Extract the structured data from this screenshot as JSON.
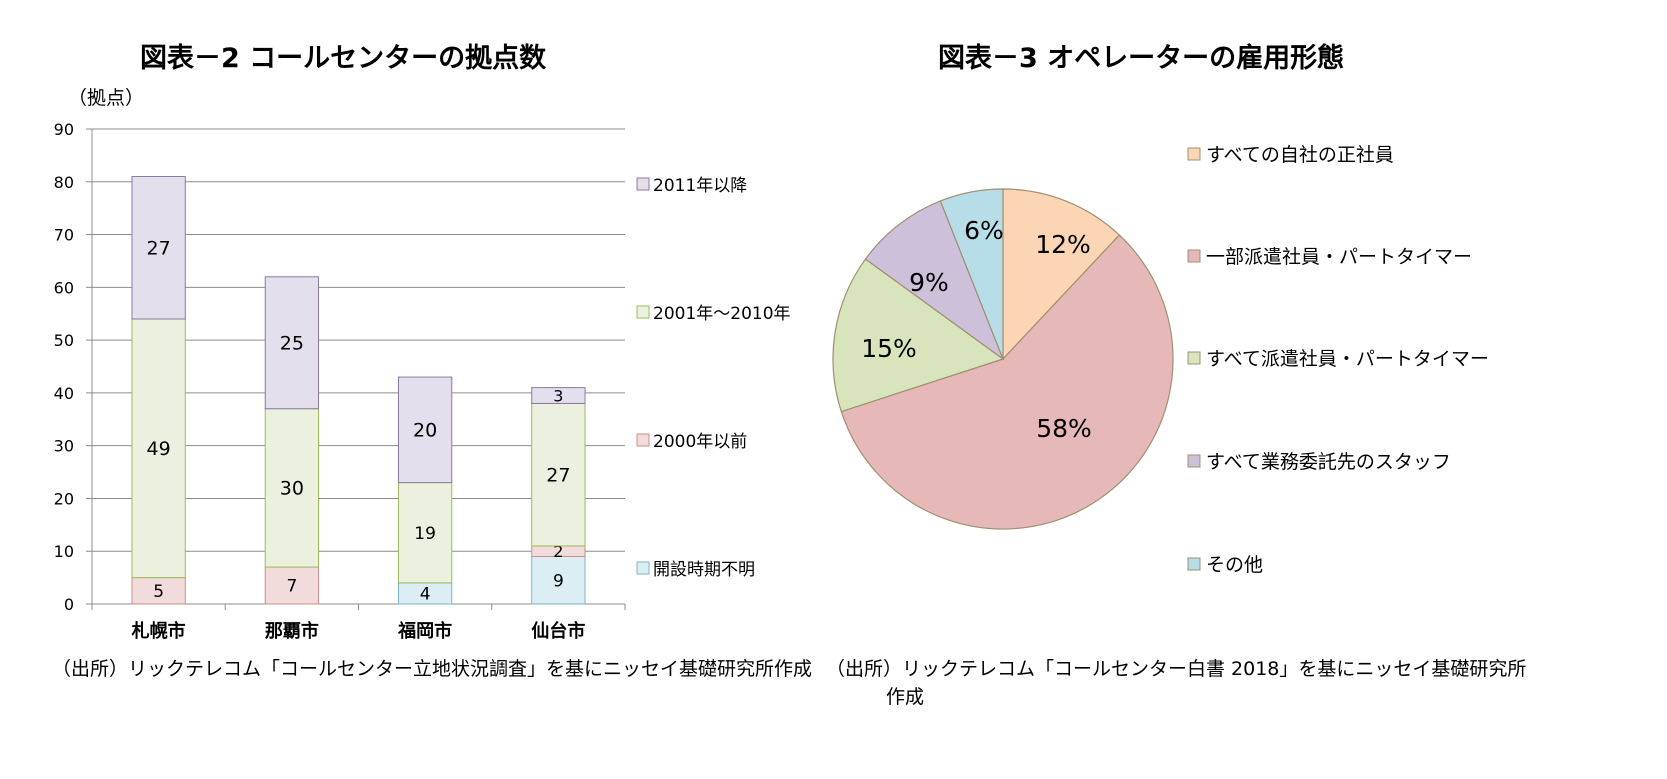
{
  "chart_data": [
    {
      "type": "bar",
      "stacked": true,
      "title": "図表－2  コールセンターの拠点数",
      "ylabel": "（拠点）",
      "xlabel": "",
      "ylim": [
        0,
        90
      ],
      "yticks": [
        "0",
        "10",
        "20",
        "30",
        "40",
        "50",
        "60",
        "70",
        "80",
        "90"
      ],
      "grid": true,
      "legend_position": "right",
      "categories": [
        "札幌市",
        "那覇市",
        "福岡市",
        "仙台市"
      ],
      "series": [
        {
          "name": "開設時期不明",
          "values": [
            0,
            0,
            4,
            9
          ],
          "color": "#daeef3"
        },
        {
          "name": "2000年以前",
          "values": [
            5,
            7,
            0,
            2
          ],
          "color": "#f2dcdb"
        },
        {
          "name": "2001年～2010年",
          "values": [
            49,
            30,
            19,
            27
          ],
          "color": "#ebf1de"
        },
        {
          "name": "2011年以降",
          "values": [
            27,
            25,
            20,
            3
          ],
          "color": "#e4dfec"
        }
      ],
      "legend_order": [
        "2011年以降",
        "2001年～2010年",
        "2000年以前",
        "開設時期不明"
      ],
      "source": "（出所）リックテレコム「コールセンター立地状況調査」を基にニッセイ基礎研究所作成"
    },
    {
      "type": "pie",
      "title": "図表－3  オペレーターの雇用形態",
      "legend_position": "right",
      "slices": [
        {
          "label": "すべての自社の正社員",
          "value": 12,
          "display": "12%",
          "color": "#fcd5b4"
        },
        {
          "label": "一部派遣社員・パートタイマー",
          "value": 58,
          "display": "58%",
          "color": "#e6b8b7"
        },
        {
          "label": "すべて派遣社員・パートタイマー",
          "value": 15,
          "display": "15%",
          "color": "#d8e4bc"
        },
        {
          "label": "すべて業務委託先のスタッフ",
          "value": 9,
          "display": "9%",
          "color": "#ccc0da"
        },
        {
          "label": "その他",
          "value": 6,
          "display": "6%",
          "color": "#b7dee8"
        }
      ],
      "source_line1": "（出所）リックテレコム「コールセンター白書 2018」を基にニッセイ基礎研究所",
      "source_line2": "作成"
    }
  ]
}
